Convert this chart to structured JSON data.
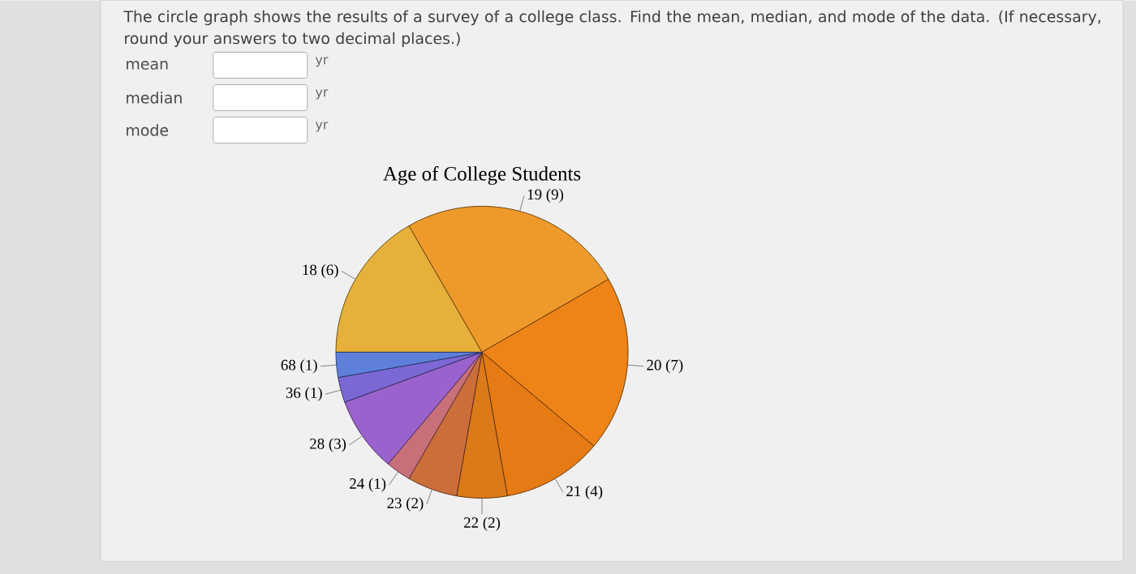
{
  "chart_data": {
    "type": "pie",
    "title": "Age of College Students",
    "categories": [
      "18 (6)",
      "19 (9)",
      "20 (7)",
      "21 (4)",
      "22 (2)",
      "23 (2)",
      "24 (1)",
      "28 (3)",
      "36 (1)",
      "68 (1)"
    ],
    "values": [
      6,
      9,
      7,
      4,
      2,
      2,
      1,
      3,
      1,
      1
    ],
    "colors": [
      "#e6b03a",
      "#ee9a2a",
      "#ee8418",
      "#e67a14",
      "#dc7a1a",
      "#cc6e3a",
      "#c8707a",
      "#9a62cc",
      "#7c68d4",
      "#5e80dc"
    ],
    "annotations": [
      "The circle graph shows the results of a survey of a college class. Find the mean, median, and mode of the data. (If necessary, round your answers to two decimal places.)",
      "mean",
      "yr",
      "median",
      "yr",
      "mode",
      "yr"
    ]
  }
}
